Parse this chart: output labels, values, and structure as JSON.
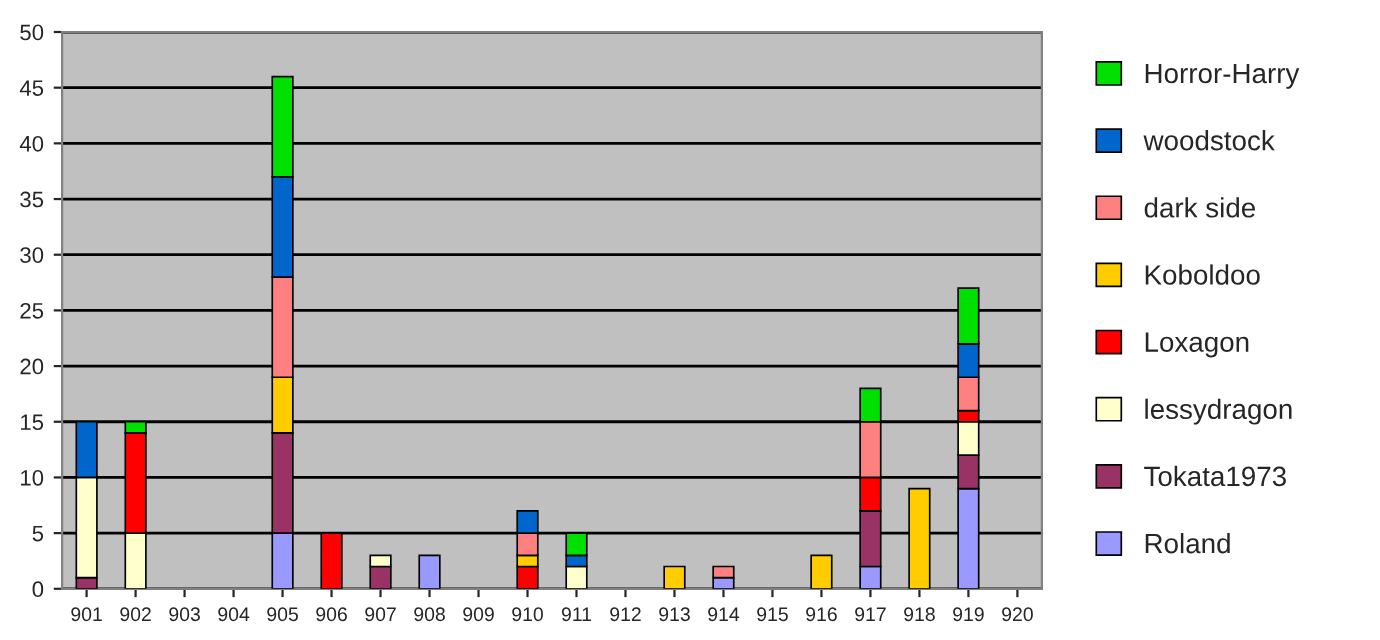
{
  "chart_data": {
    "type": "bar",
    "stacked": true,
    "categories": [
      "901",
      "902",
      "903",
      "904",
      "905",
      "906",
      "907",
      "908",
      "909",
      "910",
      "911",
      "912",
      "913",
      "914",
      "915",
      "916",
      "917",
      "918",
      "919",
      "920"
    ],
    "series": [
      {
        "name": "Roland",
        "color": "#9999ff",
        "values": [
          null,
          null,
          null,
          null,
          5,
          null,
          null,
          3,
          null,
          null,
          null,
          null,
          null,
          1,
          null,
          null,
          2,
          null,
          9,
          null
        ]
      },
      {
        "name": "Tokata1973",
        "color": "#993366",
        "values": [
          1,
          null,
          null,
          null,
          9,
          null,
          2,
          null,
          null,
          null,
          null,
          null,
          null,
          null,
          null,
          null,
          5,
          null,
          3,
          null
        ]
      },
      {
        "name": "lessydragon",
        "color": "#ffffcc",
        "values": [
          9,
          5,
          null,
          null,
          null,
          null,
          1,
          null,
          null,
          null,
          2,
          null,
          null,
          null,
          null,
          null,
          null,
          null,
          3,
          null
        ]
      },
      {
        "name": "Loxagon",
        "color": "#ff0000",
        "values": [
          null,
          9,
          null,
          null,
          null,
          5,
          null,
          null,
          null,
          2,
          null,
          null,
          null,
          null,
          null,
          null,
          3,
          null,
          1,
          null
        ]
      },
      {
        "name": "Koboldoo",
        "color": "#ffcc00",
        "values": [
          null,
          null,
          null,
          null,
          5,
          null,
          null,
          null,
          null,
          1,
          null,
          null,
          2,
          null,
          null,
          3,
          null,
          9,
          null,
          null
        ]
      },
      {
        "name": "dark side",
        "color": "#ff8080",
        "values": [
          null,
          null,
          null,
          null,
          9,
          null,
          null,
          null,
          null,
          2,
          null,
          null,
          null,
          1,
          null,
          null,
          5,
          null,
          3,
          null
        ]
      },
      {
        "name": "woodstock",
        "color": "#0066cc",
        "values": [
          5,
          null,
          null,
          null,
          9,
          null,
          null,
          null,
          null,
          2,
          1,
          null,
          null,
          null,
          null,
          null,
          null,
          null,
          3,
          null
        ]
      },
      {
        "name": "Horror-Harry",
        "color": "#00e000",
        "values": [
          null,
          1,
          null,
          null,
          9,
          null,
          null,
          null,
          null,
          null,
          2,
          null,
          null,
          null,
          null,
          null,
          3,
          null,
          5,
          null
        ]
      }
    ],
    "ylim": [
      0,
      50
    ],
    "yticks": [
      0,
      5,
      10,
      15,
      20,
      25,
      30,
      35,
      40,
      45,
      50
    ],
    "grid": "y",
    "legend": "right"
  }
}
